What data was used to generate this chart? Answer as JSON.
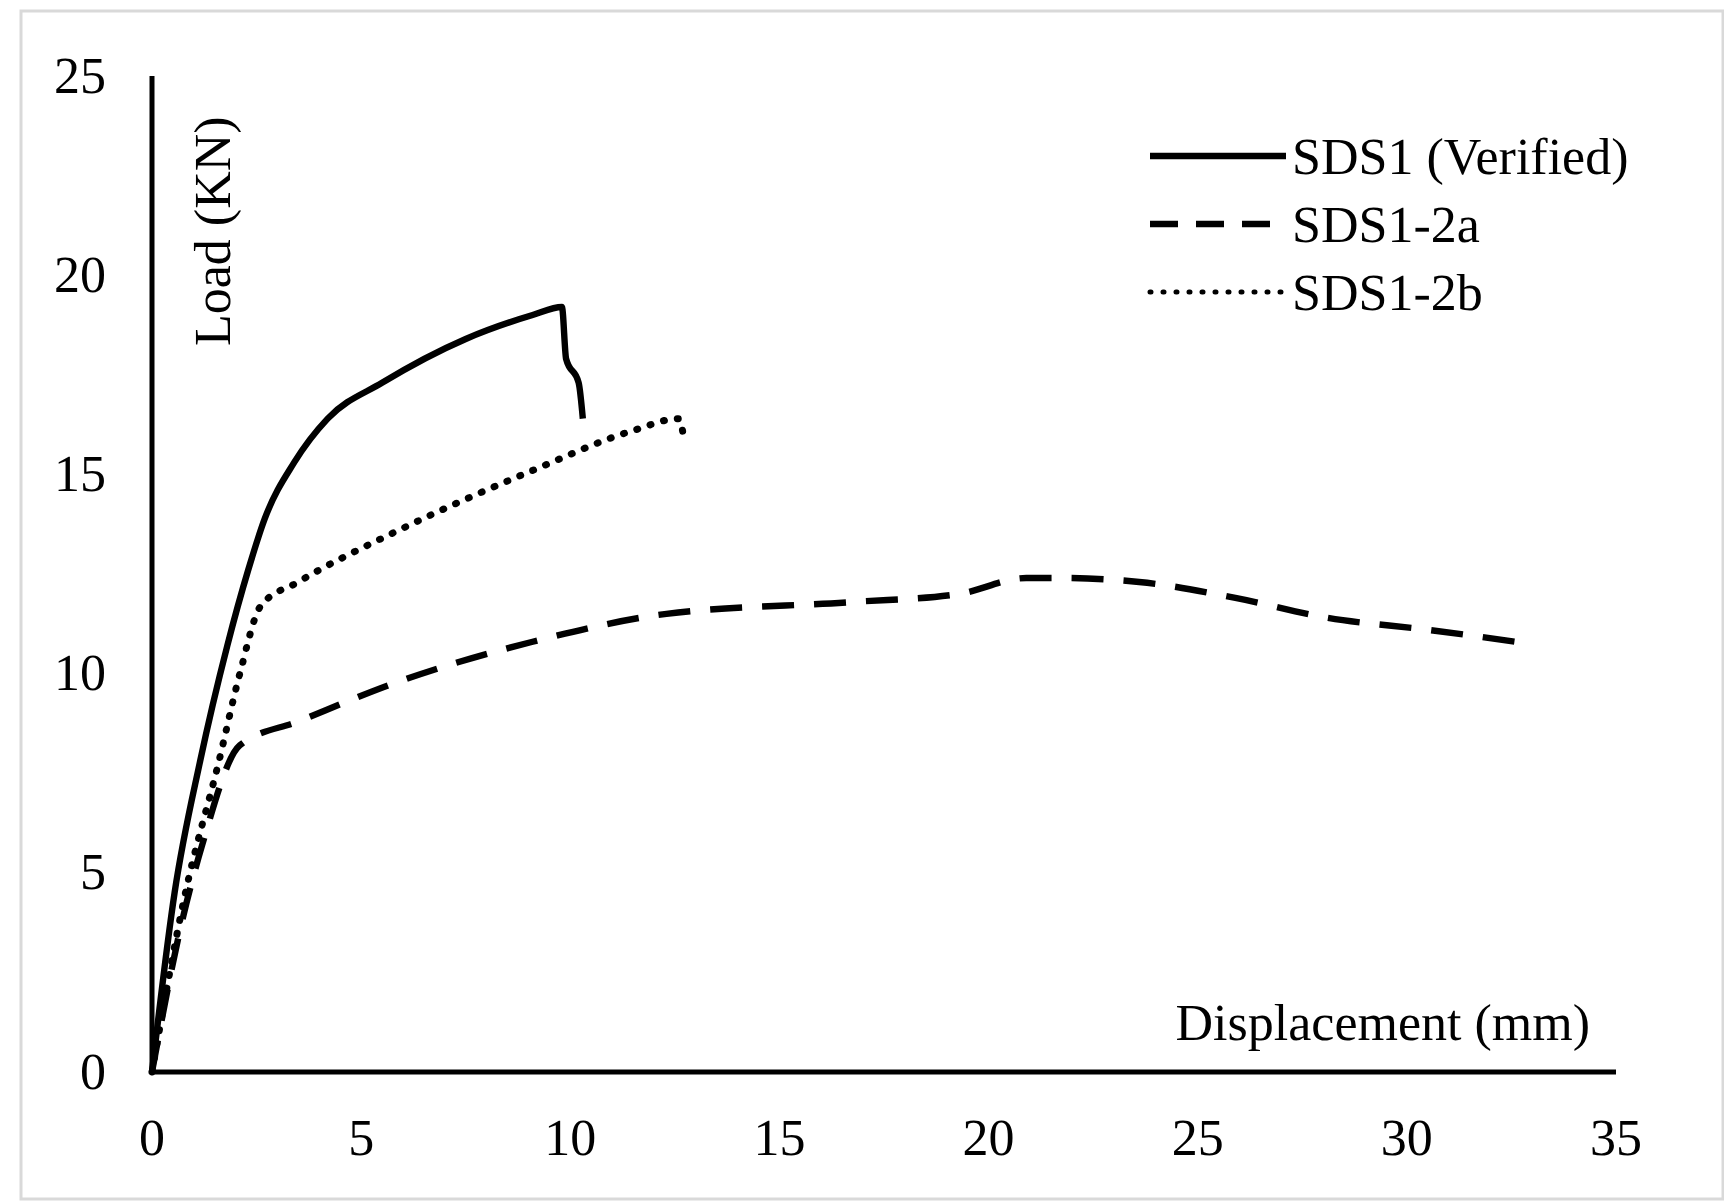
{
  "chart_data": {
    "type": "line",
    "xlabel": "Displacement (mm)",
    "ylabel": "Load (KN)",
    "xlim": [
      0,
      35
    ],
    "ylim": [
      0,
      25
    ],
    "xticks": [
      0,
      5,
      10,
      15,
      20,
      25,
      30,
      35
    ],
    "yticks": [
      0,
      5,
      10,
      15,
      20,
      25
    ],
    "grid": false,
    "legend": "top right",
    "marker": "none",
    "series": [
      {
        "name": "SDS1 (Verified)",
        "color": "#000000",
        "line_style": "solid",
        "x": [
          0,
          0.54,
          1.15,
          1.8,
          2.3,
          2.7,
          3.4,
          4.2,
          5.5,
          7.5,
          9.1,
          9.8,
          9.9,
          10.2,
          10.3
        ],
        "values": [
          0,
          4.5,
          7.8,
          10.7,
          12.6,
          13.9,
          15.3,
          16.4,
          17.3,
          18.4,
          19.0,
          19.2,
          17.9,
          17.3,
          16.4
        ]
      },
      {
        "name": "SDS1-2a",
        "color": "#000000",
        "line_style": "dashed",
        "x": [
          0,
          0.7,
          1.2,
          2.1,
          3.5,
          5.9,
          9.1,
          12.3,
          16.8,
          19.3,
          20.9,
          21.7,
          23.6,
          25.9,
          28.1,
          30.5,
          32.6
        ],
        "values": [
          0,
          3.7,
          5.7,
          8.2,
          8.8,
          9.8,
          10.8,
          11.5,
          11.8,
          12.0,
          12.4,
          12.4,
          12.3,
          11.9,
          11.4,
          11.1,
          10.8
        ]
      },
      {
        "name": "SDS1-2b",
        "color": "#000000",
        "line_style": "dotted",
        "x": [
          0,
          0.8,
          1.6,
          2.1,
          2.6,
          3.5,
          5.9,
          9.1,
          11.5,
          12.6,
          12.7
        ],
        "values": [
          0,
          4.5,
          7.8,
          10.0,
          11.7,
          12.3,
          13.6,
          15.1,
          16.1,
          16.4,
          16.0
        ]
      }
    ]
  }
}
